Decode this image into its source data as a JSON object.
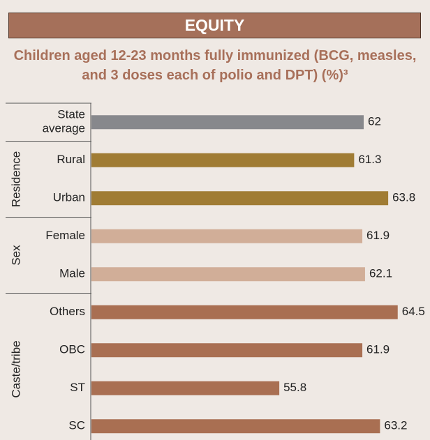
{
  "chart_data": {
    "type": "bar",
    "orientation": "horizontal",
    "header": "EQUITY",
    "title": "Children aged 12-23 months fully immunized (BCG, measles, and 3 doses each of polio and DPT) (%)³",
    "groups": [
      {
        "categories": [
          "State average"
        ],
        "values": [
          62
        ],
        "color": "#87888c"
      },
      {
        "name": "Residence",
        "categories": [
          "Rural",
          "Urban"
        ],
        "values": [
          61.3,
          63.8
        ],
        "color": "#a07c34"
      },
      {
        "name": "Sex",
        "categories": [
          "Female",
          "Male"
        ],
        "values": [
          61.9,
          62.1
        ],
        "color": "#d1ae98"
      },
      {
        "name": "Caste/tribe",
        "categories": [
          "Others",
          "OBC",
          "ST",
          "SC"
        ],
        "values": [
          64.5,
          61.9,
          55.8,
          63.2
        ],
        "color": "#a96f52"
      }
    ],
    "xlim": [
      42,
      66
    ]
  }
}
